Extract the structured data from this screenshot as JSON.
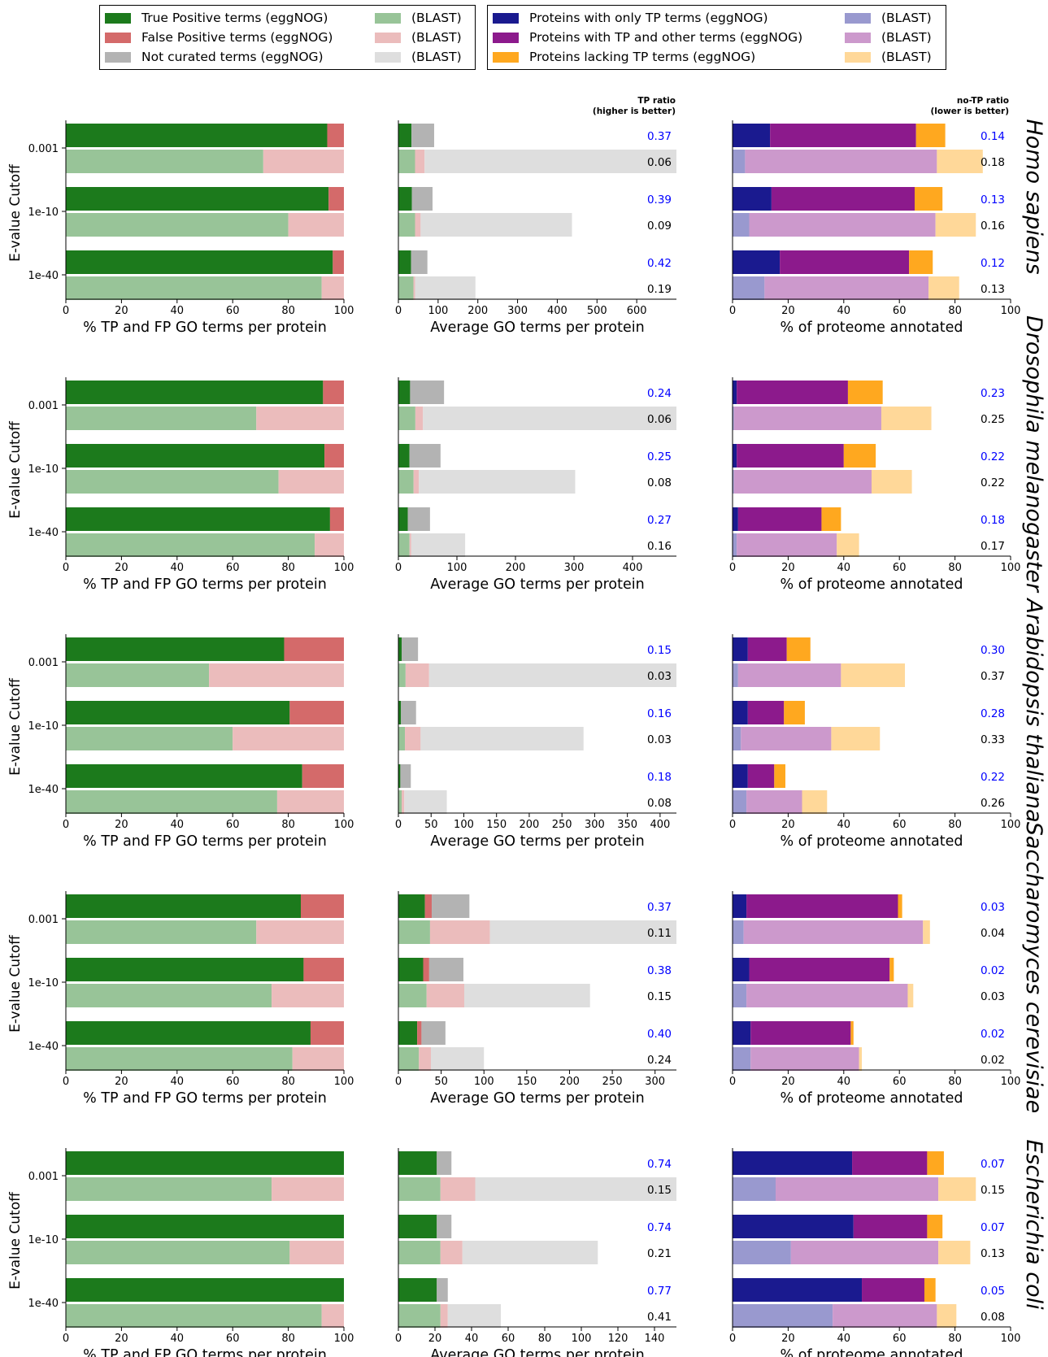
{
  "legend_left": [
    {
      "label": "True Positive terms (eggNOG)",
      "color": "#1c7a1c"
    },
    {
      "label": "(BLAST)",
      "color": "#98c498"
    },
    {
      "label": "False Positive terms (eggNOG)",
      "color": "#d46a6a"
    },
    {
      "label": "(BLAST)",
      "color": "#ebbcbc"
    },
    {
      "label": "Not curated terms (eggNOG)",
      "color": "#b3b3b3"
    },
    {
      "label": "(BLAST)",
      "color": "#dedede"
    }
  ],
  "legend_right": [
    {
      "label": "Proteins with only TP terms (eggNOG)",
      "color": "#1a1a8f"
    },
    {
      "label": "(BLAST)",
      "color": "#9999cf"
    },
    {
      "label": "Proteins with TP and other terms (eggNOG)",
      "color": "#8c1a8c"
    },
    {
      "label": "(BLAST)",
      "color": "#cc99cc"
    },
    {
      "label": "Proteins lacking TP terms (eggNOG)",
      "color": "#ffa81f"
    },
    {
      "label": "(BLAST)",
      "color": "#ffd899"
    }
  ],
  "colors": {
    "tp_egg": "#1c7a1c",
    "tp_blast": "#98c498",
    "fp_egg": "#d46a6a",
    "fp_blast": "#ebbcbc",
    "nc_egg": "#b3b3b3",
    "nc_blast": "#dedede",
    "only_egg": "#1a1a8f",
    "only_blast": "#9999cf",
    "mix_egg": "#8c1a8c",
    "mix_blast": "#cc99cc",
    "lack_egg": "#ffa81f",
    "lack_blast": "#ffd899",
    "ratio_egg_text": "#0000ff",
    "ratio_blast_text": "#000000"
  },
  "labels": {
    "ylabel": "E-value Cutoff",
    "xlabel_panel1": "% TP and FP GO terms per protein",
    "xlabel_panel2": "Average GO terms per protein",
    "xlabel_panel3": "% of proteome annotated",
    "tp_ratio_header": [
      "TP ratio",
      "(higher is better)"
    ],
    "notp_ratio_header": [
      "no-TP ratio",
      "(lower is better)"
    ],
    "cutoffs": [
      "0.001",
      "1e-10",
      "1e-40"
    ]
  },
  "chart_data": [
    {
      "type": "bar",
      "organism": "Homo sapiens",
      "categories": [
        "0.001",
        "1e-10",
        "1e-40"
      ],
      "pct_tp_fp": {
        "xlim": [
          0,
          100
        ],
        "xticks": [
          "0",
          "20",
          "40",
          "60",
          "80",
          "100"
        ],
        "eggnog": [
          {
            "tp": 94,
            "fp": 6
          },
          {
            "tp": 94.5,
            "fp": 5.5
          },
          {
            "tp": 96,
            "fp": 4
          }
        ],
        "blast": [
          {
            "tp": 71,
            "fp": 29
          },
          {
            "tp": 80,
            "fp": 20
          },
          {
            "tp": 92,
            "fp": 8
          }
        ]
      },
      "avg_terms": {
        "xlim": [
          0,
          700
        ],
        "xticks": [
          "0",
          "100",
          "200",
          "300",
          "400",
          "500",
          "600"
        ],
        "eggnog": [
          {
            "tp": 33,
            "fp": 0,
            "nc": 57
          },
          {
            "tp": 34,
            "fp": 0,
            "nc": 52
          },
          {
            "tp": 32,
            "fp": 0,
            "nc": 41
          }
        ],
        "blast": [
          {
            "tp": 42,
            "fp": 24,
            "nc": 634
          },
          {
            "tp": 42,
            "fp": 14,
            "nc": 381
          },
          {
            "tp": 38,
            "fp": 4,
            "nc": 152
          }
        ]
      },
      "tp_ratio": {
        "eggnog": [
          "0.37",
          "0.39",
          "0.42"
        ],
        "blast": [
          "0.06",
          "0.09",
          "0.19"
        ]
      },
      "proteome": {
        "xlim": [
          0,
          100
        ],
        "xticks": [
          "0",
          "20",
          "40",
          "60",
          "80",
          "100"
        ],
        "eggnog": [
          {
            "only": 13.5,
            "mix": 52.5,
            "lack": 10.5
          },
          {
            "only": 14,
            "mix": 51.5,
            "lack": 10
          },
          {
            "only": 17,
            "mix": 46.5,
            "lack": 8.5
          }
        ],
        "blast": [
          {
            "only": 4.5,
            "mix": 69,
            "lack": 16.5
          },
          {
            "only": 6,
            "mix": 67,
            "lack": 14.5
          },
          {
            "only": 11.5,
            "mix": 59,
            "lack": 11
          }
        ]
      },
      "notp_ratio": {
        "eggnog": [
          "0.14",
          "0.13",
          "0.12"
        ],
        "blast": [
          "0.18",
          "0.16",
          "0.13"
        ]
      }
    },
    {
      "type": "bar",
      "organism": "Drosophila melanogaster",
      "categories": [
        "0.001",
        "1e-10",
        "1e-40"
      ],
      "pct_tp_fp": {
        "xlim": [
          0,
          100
        ],
        "xticks": [
          "0",
          "20",
          "40",
          "60",
          "80",
          "100"
        ],
        "eggnog": [
          {
            "tp": 92.5,
            "fp": 7.5
          },
          {
            "tp": 93,
            "fp": 7
          },
          {
            "tp": 95,
            "fp": 5
          }
        ],
        "blast": [
          {
            "tp": 68.5,
            "fp": 31.5
          },
          {
            "tp": 76.5,
            "fp": 23.5
          },
          {
            "tp": 89.5,
            "fp": 10.5
          }
        ]
      },
      "avg_terms": {
        "xlim": [
          0,
          475
        ],
        "xticks": [
          "0",
          "100",
          "200",
          "300",
          "400"
        ],
        "eggnog": [
          {
            "tp": 20,
            "fp": 0,
            "nc": 58
          },
          {
            "tp": 19,
            "fp": 0,
            "nc": 53
          },
          {
            "tp": 16,
            "fp": 0,
            "nc": 38
          }
        ],
        "blast": [
          {
            "tp": 29,
            "fp": 13,
            "nc": 433
          },
          {
            "tp": 26,
            "fp": 9,
            "nc": 267
          },
          {
            "tp": 19,
            "fp": 3,
            "nc": 92
          }
        ]
      },
      "tp_ratio": {
        "eggnog": [
          "0.24",
          "0.25",
          "0.27"
        ],
        "blast": [
          "0.06",
          "0.08",
          "0.16"
        ]
      },
      "proteome": {
        "xlim": [
          0,
          100
        ],
        "xticks": [
          "0",
          "20",
          "40",
          "60",
          "80",
          "100"
        ],
        "eggnog": [
          {
            "only": 1.5,
            "mix": 40,
            "lack": 12.5
          },
          {
            "only": 1.5,
            "mix": 38.5,
            "lack": 11.5
          },
          {
            "only": 2,
            "mix": 30,
            "lack": 7
          }
        ],
        "blast": [
          {
            "only": 0.5,
            "mix": 53,
            "lack": 18
          },
          {
            "only": 0.5,
            "mix": 49.5,
            "lack": 14.5
          },
          {
            "only": 1.5,
            "mix": 36,
            "lack": 8
          }
        ]
      },
      "notp_ratio": {
        "eggnog": [
          "0.23",
          "0.22",
          "0.18"
        ],
        "blast": [
          "0.25",
          "0.22",
          "0.17"
        ]
      }
    },
    {
      "type": "bar",
      "organism": "Arabidopsis thaliana",
      "categories": [
        "0.001",
        "1e-10",
        "1e-40"
      ],
      "pct_tp_fp": {
        "xlim": [
          0,
          100
        ],
        "xticks": [
          "0",
          "20",
          "40",
          "60",
          "80",
          "100"
        ],
        "eggnog": [
          {
            "tp": 78.5,
            "fp": 21.5
          },
          {
            "tp": 80.5,
            "fp": 19.5
          },
          {
            "tp": 85,
            "fp": 15
          }
        ],
        "blast": [
          {
            "tp": 51.5,
            "fp": 48.5
          },
          {
            "tp": 60,
            "fp": 40
          },
          {
            "tp": 76,
            "fp": 24
          }
        ]
      },
      "avg_terms": {
        "xlim": [
          0,
          425
        ],
        "xticks": [
          "0",
          "50",
          "100",
          "150",
          "200",
          "250",
          "300",
          "350",
          "400"
        ],
        "eggnog": [
          {
            "tp": 5,
            "fp": 0,
            "nc": 25
          },
          {
            "tp": 4,
            "fp": 0,
            "nc": 23
          },
          {
            "tp": 3,
            "fp": 0,
            "nc": 16
          }
        ],
        "blast": [
          {
            "tp": 11,
            "fp": 36,
            "nc": 378
          },
          {
            "tp": 10,
            "fp": 24,
            "nc": 249
          },
          {
            "tp": 5,
            "fp": 4,
            "nc": 65
          }
        ]
      },
      "tp_ratio": {
        "eggnog": [
          "0.15",
          "0.16",
          "0.18"
        ],
        "blast": [
          "0.03",
          "0.03",
          "0.08"
        ]
      },
      "proteome": {
        "xlim": [
          0,
          100
        ],
        "xticks": [
          "0",
          "20",
          "40",
          "60",
          "80",
          "100"
        ],
        "eggnog": [
          {
            "only": 5.5,
            "mix": 14,
            "lack": 8.5
          },
          {
            "only": 5.5,
            "mix": 13,
            "lack": 7.5
          },
          {
            "only": 5.5,
            "mix": 9.5,
            "lack": 4
          }
        ],
        "blast": [
          {
            "only": 2,
            "mix": 37,
            "lack": 23
          },
          {
            "only": 3,
            "mix": 32.5,
            "lack": 17.5
          },
          {
            "only": 5,
            "mix": 20,
            "lack": 9
          }
        ]
      },
      "notp_ratio": {
        "eggnog": [
          "0.30",
          "0.28",
          "0.22"
        ],
        "blast": [
          "0.37",
          "0.33",
          "0.26"
        ]
      }
    },
    {
      "type": "bar",
      "organism": "Saccharomyces cerevisiae",
      "categories": [
        "0.001",
        "1e-10",
        "1e-40"
      ],
      "pct_tp_fp": {
        "xlim": [
          0,
          100
        ],
        "xticks": [
          "0",
          "20",
          "40",
          "60",
          "80",
          "100"
        ],
        "eggnog": [
          {
            "tp": 84.5,
            "fp": 15.5
          },
          {
            "tp": 85.5,
            "fp": 14.5
          },
          {
            "tp": 88,
            "fp": 12
          }
        ],
        "blast": [
          {
            "tp": 68.5,
            "fp": 31.5
          },
          {
            "tp": 74,
            "fp": 26
          },
          {
            "tp": 81.5,
            "fp": 18.5
          }
        ]
      },
      "avg_terms": {
        "xlim": [
          0,
          325
        ],
        "xticks": [
          "0",
          "50",
          "100",
          "150",
          "200",
          "250",
          "300"
        ],
        "eggnog": [
          {
            "tp": 31,
            "fp": 8,
            "nc": 44
          },
          {
            "tp": 29,
            "fp": 7,
            "nc": 40
          },
          {
            "tp": 22,
            "fp": 5,
            "nc": 28
          }
        ],
        "blast": [
          {
            "tp": 37,
            "fp": 70,
            "nc": 218
          },
          {
            "tp": 33,
            "fp": 44,
            "nc": 147
          },
          {
            "tp": 24,
            "fp": 14,
            "nc": 62
          }
        ]
      },
      "tp_ratio": {
        "eggnog": [
          "0.37",
          "0.38",
          "0.40"
        ],
        "blast": [
          "0.11",
          "0.15",
          "0.24"
        ]
      },
      "proteome": {
        "xlim": [
          0,
          100
        ],
        "xticks": [
          "0",
          "20",
          "40",
          "60",
          "80",
          "100"
        ],
        "eggnog": [
          {
            "only": 5,
            "mix": 54.5,
            "lack": 1.5
          },
          {
            "only": 6,
            "mix": 50.5,
            "lack": 1.5
          },
          {
            "only": 6.5,
            "mix": 36,
            "lack": 1
          }
        ],
        "blast": [
          {
            "only": 4,
            "mix": 64.5,
            "lack": 2.5
          },
          {
            "only": 5,
            "mix": 58,
            "lack": 2
          },
          {
            "only": 6.5,
            "mix": 39,
            "lack": 1
          }
        ]
      },
      "notp_ratio": {
        "eggnog": [
          "0.03",
          "0.02",
          "0.02"
        ],
        "blast": [
          "0.04",
          "0.03",
          "0.02"
        ]
      }
    },
    {
      "type": "bar",
      "organism": "Escherichia coli",
      "categories": [
        "0.001",
        "1e-10",
        "1e-40"
      ],
      "pct_tp_fp": {
        "xlim": [
          0,
          100
        ],
        "xticks": [
          "0",
          "20",
          "40",
          "60",
          "80",
          "100"
        ],
        "eggnog": [
          {
            "tp": 100,
            "fp": 0
          },
          {
            "tp": 100,
            "fp": 0
          },
          {
            "tp": 100,
            "fp": 0
          }
        ],
        "blast": [
          {
            "tp": 74,
            "fp": 26
          },
          {
            "tp": 80.5,
            "fp": 19.5
          },
          {
            "tp": 92,
            "fp": 8
          }
        ]
      },
      "avg_terms": {
        "xlim": [
          0,
          152
        ],
        "xticks": [
          "0",
          "20",
          "40",
          "60",
          "80",
          "100",
          "120",
          "140"
        ],
        "eggnog": [
          {
            "tp": 21,
            "fp": 0,
            "nc": 8
          },
          {
            "tp": 21,
            "fp": 0,
            "nc": 8
          },
          {
            "tp": 21,
            "fp": 0,
            "nc": 6
          }
        ],
        "blast": [
          {
            "tp": 23,
            "fp": 19,
            "nc": 110
          },
          {
            "tp": 23,
            "fp": 12,
            "nc": 74
          },
          {
            "tp": 23,
            "fp": 4,
            "nc": 29
          }
        ]
      },
      "tp_ratio": {
        "eggnog": [
          "0.74",
          "0.74",
          "0.77"
        ],
        "blast": [
          "0.15",
          "0.21",
          "0.41"
        ]
      },
      "proteome": {
        "xlim": [
          0,
          100
        ],
        "xticks": [
          "0",
          "20",
          "40",
          "60",
          "80",
          "100"
        ],
        "eggnog": [
          {
            "only": 43,
            "mix": 27,
            "lack": 6
          },
          {
            "only": 43.5,
            "mix": 26.5,
            "lack": 5.5
          },
          {
            "only": 46.5,
            "mix": 22.5,
            "lack": 4
          }
        ],
        "blast": [
          {
            "only": 15.5,
            "mix": 58.5,
            "lack": 13.5
          },
          {
            "only": 21,
            "mix": 53,
            "lack": 11.5
          },
          {
            "only": 36,
            "mix": 37.5,
            "lack": 7
          }
        ]
      },
      "notp_ratio": {
        "eggnog": [
          "0.07",
          "0.07",
          "0.05"
        ],
        "blast": [
          "0.15",
          "0.13",
          "0.08"
        ]
      }
    }
  ]
}
